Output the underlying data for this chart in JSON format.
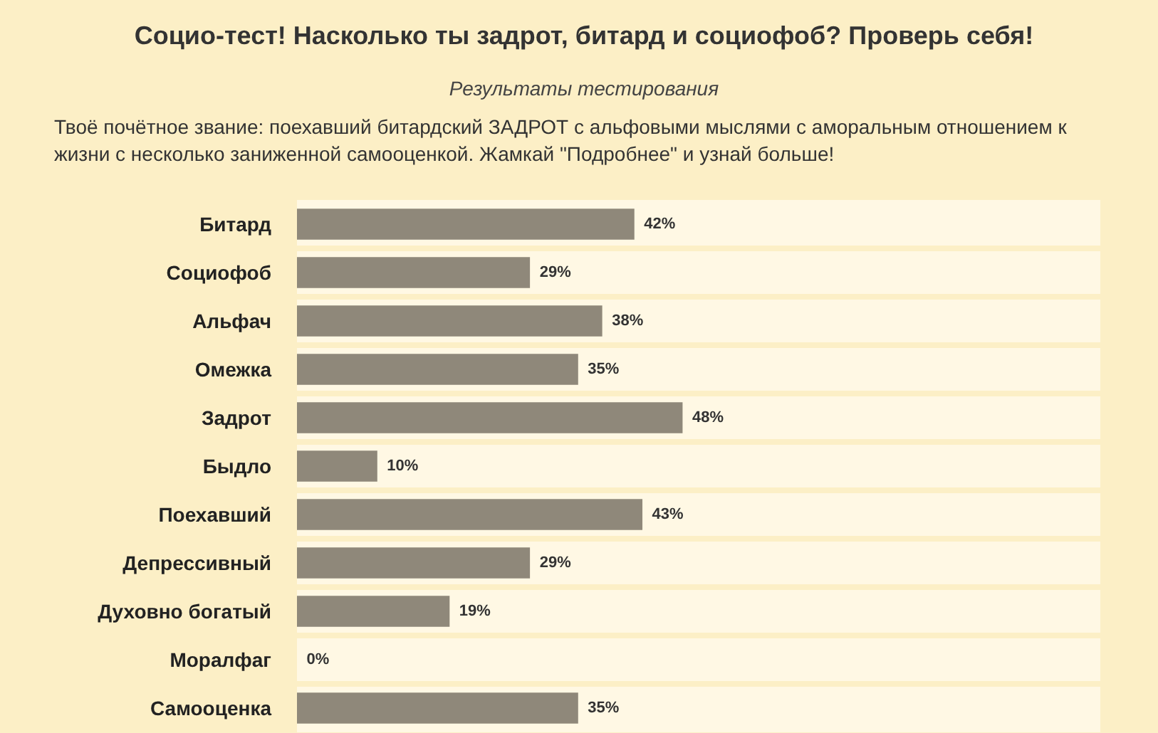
{
  "chart_data": {
    "type": "bar",
    "orientation": "horizontal",
    "title": "Социо-тест! Насколько ты задрот, битард и социофоб? Проверь себя!",
    "subtitle": "Результаты тестирования",
    "annotations": [
      "Твоё почётное звание: поехавший битардский ЗАДРОТ с альфовыми мыслями с аморальным отношением к жизни с несколько заниженной самооценкой. Жамкай \"Подробнее\" и узнай больше!"
    ],
    "categories": [
      "Битард",
      "Социофоб",
      "Альфач",
      "Омежка",
      "Задрот",
      "Быдло",
      "Поехавший",
      "Депрессивный",
      "Духовно богатый",
      "Моралфаг",
      "Самооценка"
    ],
    "values": [
      42,
      29,
      38,
      35,
      48,
      10,
      43,
      29,
      19,
      0,
      35
    ],
    "value_labels": [
      "42%",
      "29%",
      "38%",
      "35%",
      "48%",
      "10%",
      "43%",
      "29%",
      "19%",
      "0%",
      "35%"
    ],
    "color": "#8f887a",
    "xlim": [
      0,
      100
    ],
    "tick_labels": "y"
  }
}
